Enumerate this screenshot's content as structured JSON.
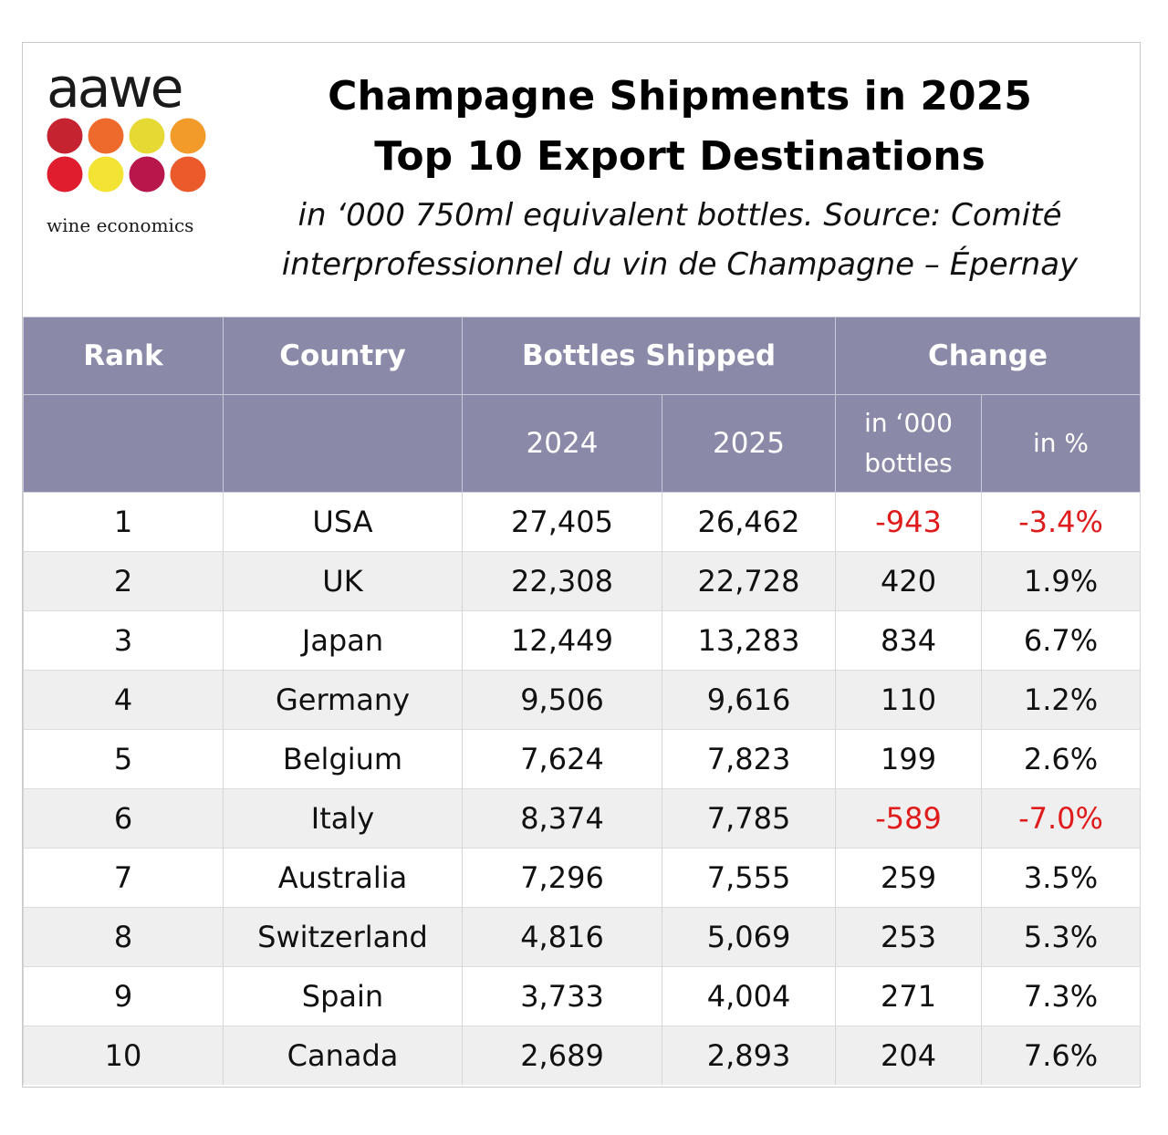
{
  "logo": {
    "word": "aawe",
    "tagline": "wine economics",
    "dot_colors": [
      "#c4232f",
      "#ee6a2c",
      "#e6d934",
      "#f39b2a",
      "#e01d2e",
      "#f2e334",
      "#b7174a",
      "#ea5a2a"
    ]
  },
  "header": {
    "title_line1": "Champagne Shipments in 2025",
    "title_line2": "Top 10 Export Destinations",
    "subtitle_line1": "in ‘000 750ml equivalent bottles. Source: Comité",
    "subtitle_line2": "interprofessionnel du vin de Champagne – Épernay"
  },
  "table_header": {
    "rank": "Rank",
    "country": "Country",
    "bottles_shipped": "Bottles Shipped",
    "change": "Change",
    "year_2024": "2024",
    "year_2025": "2025",
    "change_abs_line1": "in ‘000",
    "change_abs_line2": "bottles",
    "change_pct": "in %"
  },
  "colors": {
    "header_bg": "#8a8aa8",
    "header_text": "#ffffff",
    "negative": "#e01b1b",
    "alt_row": "#efefef"
  },
  "chart_data": {
    "type": "table",
    "title": "Champagne Shipments in 2025 Top 10 Export Destinations",
    "columns": [
      "Rank",
      "Country",
      "2024",
      "2025",
      "in ‘000 bottles",
      "in %"
    ],
    "rows": [
      {
        "rank": "1",
        "country": "USA",
        "y2024": "27,405",
        "y2025": "26,462",
        "change_abs": "-943",
        "change_pct": "-3.4%",
        "negative": true
      },
      {
        "rank": "2",
        "country": "UK",
        "y2024": "22,308",
        "y2025": "22,728",
        "change_abs": "420",
        "change_pct": "1.9%",
        "negative": false
      },
      {
        "rank": "3",
        "country": "Japan",
        "y2024": "12,449",
        "y2025": "13,283",
        "change_abs": "834",
        "change_pct": "6.7%",
        "negative": false
      },
      {
        "rank": "4",
        "country": "Germany",
        "y2024": "9,506",
        "y2025": "9,616",
        "change_abs": "110",
        "change_pct": "1.2%",
        "negative": false
      },
      {
        "rank": "5",
        "country": "Belgium",
        "y2024": "7,624",
        "y2025": "7,823",
        "change_abs": "199",
        "change_pct": "2.6%",
        "negative": false
      },
      {
        "rank": "6",
        "country": "Italy",
        "y2024": "8,374",
        "y2025": "7,785",
        "change_abs": "-589",
        "change_pct": "-7.0%",
        "negative": true
      },
      {
        "rank": "7",
        "country": "Australia",
        "y2024": "7,296",
        "y2025": "7,555",
        "change_abs": "259",
        "change_pct": "3.5%",
        "negative": false
      },
      {
        "rank": "8",
        "country": "Switzerland",
        "y2024": "4,816",
        "y2025": "5,069",
        "change_abs": "253",
        "change_pct": "5.3%",
        "negative": false
      },
      {
        "rank": "9",
        "country": "Spain",
        "y2024": "3,733",
        "y2025": "4,004",
        "change_abs": "271",
        "change_pct": "7.3%",
        "negative": false
      },
      {
        "rank": "10",
        "country": "Canada",
        "y2024": "2,689",
        "y2025": "2,893",
        "change_abs": "204",
        "change_pct": "7.6%",
        "negative": false
      }
    ]
  }
}
